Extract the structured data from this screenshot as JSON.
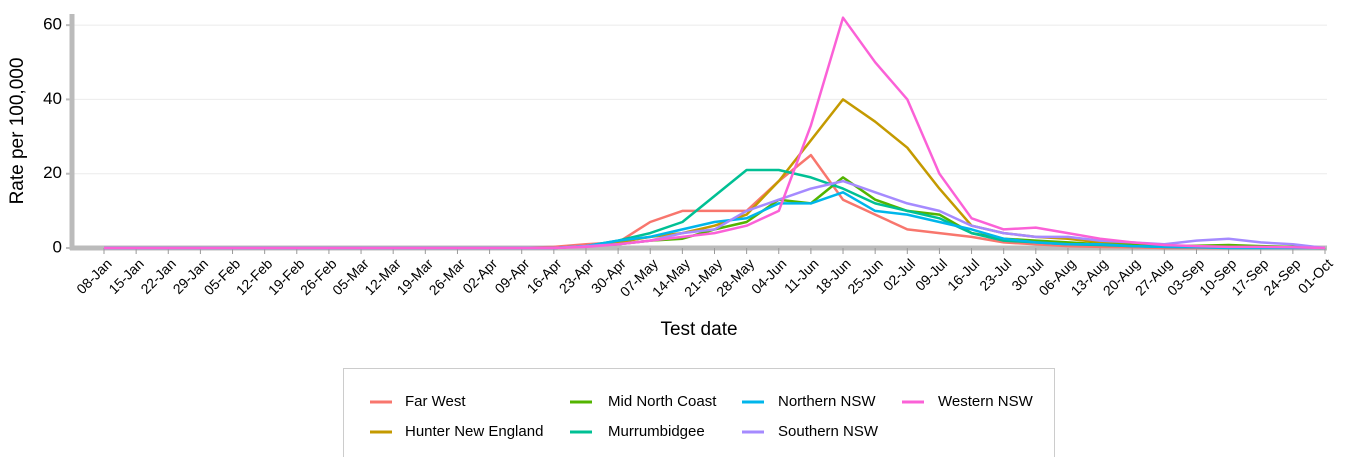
{
  "chart_data": {
    "type": "line",
    "x_label": "Test date",
    "y_label": "Rate per 100,000",
    "categories": [
      "08-Jan",
      "15-Jan",
      "22-Jan",
      "29-Jan",
      "05-Feb",
      "12-Feb",
      "19-Feb",
      "26-Feb",
      "05-Mar",
      "12-Mar",
      "19-Mar",
      "26-Mar",
      "02-Apr",
      "09-Apr",
      "16-Apr",
      "23-Apr",
      "30-Apr",
      "07-May",
      "14-May",
      "21-May",
      "28-May",
      "04-Jun",
      "11-Jun",
      "18-Jun",
      "25-Jun",
      "02-Jul",
      "09-Jul",
      "16-Jul",
      "23-Jul",
      "30-Jul",
      "06-Aug",
      "13-Aug",
      "20-Aug",
      "27-Aug",
      "03-Sep",
      "10-Sep",
      "17-Sep",
      "24-Sep",
      "01-Oct"
    ],
    "ylim": [
      0,
      63
    ],
    "yticks": [
      0,
      20,
      40,
      60
    ],
    "grid": true,
    "series": [
      {
        "name": "Far West",
        "color": "#f8766d",
        "values": [
          0,
          0,
          0,
          0,
          0,
          0,
          0,
          0,
          0,
          0,
          0,
          0,
          0,
          0,
          0.3,
          1,
          1.5,
          7,
          10,
          10,
          10,
          18,
          25,
          13,
          9,
          5,
          4,
          3,
          1.5,
          1,
          0.5,
          0.3,
          0.2,
          0,
          0,
          0,
          0,
          0,
          0
        ]
      },
      {
        "name": "Hunter New England",
        "color": "#c49a00",
        "values": [
          0,
          0,
          0,
          0,
          0,
          0,
          0,
          0,
          0,
          0,
          0,
          0,
          0,
          0,
          0,
          0.5,
          1.5,
          3,
          4,
          6,
          9,
          18,
          29,
          40,
          34,
          27,
          16,
          6,
          4,
          3,
          2.5,
          1.5,
          1,
          0.5,
          0.3,
          0.3,
          0.2,
          0.2,
          0
        ]
      },
      {
        "name": "Mid North Coast",
        "color": "#53b400",
        "values": [
          0,
          0,
          0,
          0,
          0,
          0,
          0,
          0,
          0,
          0,
          0,
          0,
          0,
          0,
          0,
          0.5,
          1,
          2,
          2.5,
          5,
          7,
          13,
          12,
          19,
          13,
          10,
          9,
          4,
          2.5,
          2,
          1.5,
          1,
          0.8,
          0.5,
          0.6,
          0.8,
          0.5,
          0.3,
          0
        ]
      },
      {
        "name": "Murrumbidgee",
        "color": "#00c094",
        "values": [
          0,
          0,
          0,
          0,
          0,
          0,
          0,
          0,
          0,
          0,
          0,
          0,
          0,
          0,
          0,
          0.5,
          2,
          4,
          7,
          14,
          21,
          21,
          19,
          16,
          12,
          10,
          8,
          4,
          2,
          1.5,
          1,
          0.8,
          0.5,
          0.3,
          0.2,
          0.2,
          0.2,
          0.2,
          0
        ]
      },
      {
        "name": "Northern NSW",
        "color": "#00b6eb",
        "values": [
          0,
          0,
          0,
          0,
          0,
          0,
          0,
          0,
          0,
          0,
          0,
          0,
          0,
          0,
          0,
          0.5,
          2,
          3,
          5,
          7,
          8,
          12,
          12,
          15,
          10,
          9,
          7,
          5,
          2.5,
          1.5,
          1,
          1,
          0.5,
          0.3,
          0.2,
          0,
          0,
          0,
          0
        ]
      },
      {
        "name": "Southern NSW",
        "color": "#a58aff",
        "values": [
          0,
          0,
          0,
          0,
          0,
          0,
          0,
          0,
          0,
          0,
          0,
          0,
          0,
          0,
          0,
          0.5,
          1,
          2,
          4,
          5,
          10,
          13,
          16,
          18,
          15,
          12,
          10,
          6,
          4,
          3,
          3,
          2,
          1.5,
          1,
          2,
          2.5,
          1.5,
          1,
          0
        ]
      },
      {
        "name": "Western NSW",
        "color": "#fb61d7",
        "values": [
          0,
          0,
          0,
          0,
          0,
          0,
          0,
          0,
          0,
          0,
          0,
          0,
          0,
          0,
          0,
          0.3,
          1,
          2,
          3,
          4,
          6,
          10,
          33,
          62,
          50,
          40,
          20,
          8,
          5,
          5.5,
          4,
          2.5,
          1.5,
          0.8,
          0.5,
          0.3,
          0.3,
          0.2,
          0
        ]
      }
    ]
  }
}
